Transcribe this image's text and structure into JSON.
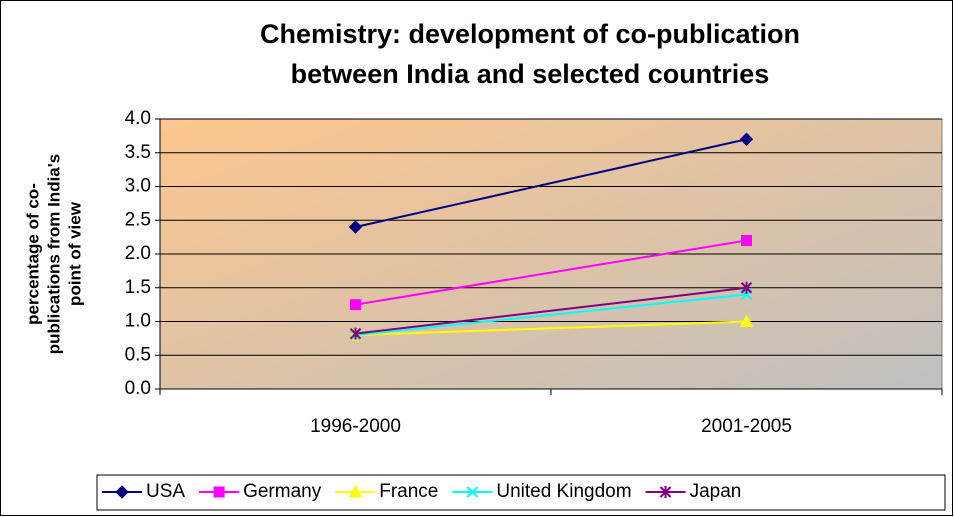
{
  "chart_data": {
    "type": "line",
    "title": [
      "Chemistry: development of co-publication",
      "between India and selected countries"
    ],
    "y_label": [
      "percentage of co-",
      "publications from India's",
      "point of view"
    ],
    "categories": [
      "1996-2000",
      "2001-2005"
    ],
    "series": [
      {
        "name": "USA",
        "color": "#000080",
        "marker": "diamond",
        "values": [
          2.4,
          3.7
        ]
      },
      {
        "name": "Germany",
        "color": "#ff00ff",
        "marker": "square",
        "values": [
          1.25,
          2.2
        ]
      },
      {
        "name": "France",
        "color": "#ffff00",
        "marker": "triangle",
        "values": [
          0.8,
          1.0
        ]
      },
      {
        "name": "United Kingdom",
        "color": "#00ffff",
        "marker": "x",
        "values": [
          0.8,
          1.4
        ]
      },
      {
        "name": "Japan",
        "color": "#800080",
        "marker": "star",
        "values": [
          0.82,
          1.5
        ]
      }
    ],
    "ylim": [
      0,
      4
    ],
    "yticks": [
      {
        "value": 0,
        "label": "0.0"
      },
      0.5,
      {
        "value": 1,
        "label": "1.0"
      },
      1.5,
      {
        "value": 2,
        "label": "2.0"
      },
      2.5,
      {
        "value": 3,
        "label": "3.0"
      },
      3.5,
      {
        "value": 4,
        "label": "4.0"
      }
    ],
    "grid": true,
    "legend": "bottom"
  }
}
